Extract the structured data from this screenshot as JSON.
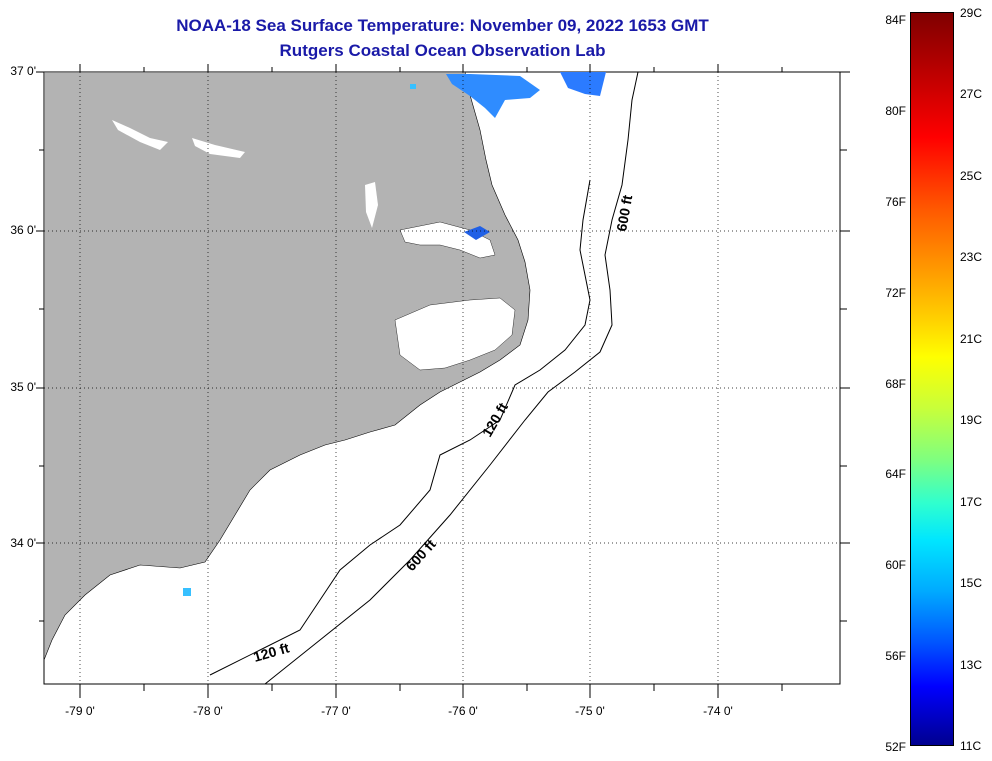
{
  "header": {
    "title_line1": "NOAA-18 Sea Surface Temperature:  November 09, 2022 1653 GMT",
    "title_line2": "Rutgers Coastal Ocean Observation Lab"
  },
  "map": {
    "lat_labels": [
      "37 0'",
      "36 0'",
      "35 0'",
      "34 0'"
    ],
    "lon_labels": [
      "-79 0'",
      "-78 0'",
      "-77 0'",
      "-76 0'",
      "-75 0'",
      "-74 0'"
    ],
    "contours": [
      "600 ft",
      "120 ft",
      "600 ft",
      "120 ft"
    ],
    "colors": {
      "land": "#b3b3b3",
      "cloud_mask": "#ffffff",
      "sst_cold": "#2b7bff",
      "sst_cool": "#37c0ff"
    }
  },
  "colorbar": {
    "fahrenheit": [
      "84F",
      "80F",
      "76F",
      "72F",
      "68F",
      "64F",
      "60F",
      "56F",
      "52F"
    ],
    "celsius": [
      "29C",
      "27C",
      "25C",
      "23C",
      "21C",
      "19C",
      "17C",
      "15C",
      "13C",
      "11C"
    ]
  }
}
